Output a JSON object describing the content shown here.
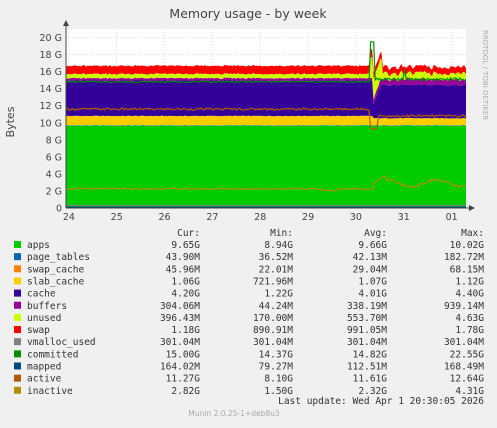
{
  "chart_data": {
    "type": "area",
    "title": "Memory usage - by week",
    "ylabel": "Bytes",
    "xlabel": "",
    "ylim": [
      0,
      21
    ],
    "y_unit": "G",
    "y_ticks": [
      {
        "value": 0,
        "label": "0"
      },
      {
        "value": 2,
        "label": "2 G"
      },
      {
        "value": 4,
        "label": "4 G"
      },
      {
        "value": 6,
        "label": "6 G"
      },
      {
        "value": 8,
        "label": "8 G"
      },
      {
        "value": 10,
        "label": "10 G"
      },
      {
        "value": 12,
        "label": "12 G"
      },
      {
        "value": 14,
        "label": "14 G"
      },
      {
        "value": 16,
        "label": "16 G"
      },
      {
        "value": 18,
        "label": "18 G"
      },
      {
        "value": 20,
        "label": "20 G"
      }
    ],
    "x_ticks": [
      "24",
      "25",
      "26",
      "27",
      "28",
      "29",
      "30",
      "31",
      "01"
    ],
    "x_range": [
      23.94,
      32.3
    ],
    "grid": true,
    "watermark": "RRDTOOL / TOBI OETIKER",
    "columns": [
      "Cur:",
      "Min:",
      "Avg:",
      "Max:"
    ],
    "series": [
      {
        "name": "apps",
        "color": "#00cc00",
        "cur": "9.65G",
        "min": "8.94G",
        "avg": "9.66G",
        "max": "10.02G"
      },
      {
        "name": "page_tables",
        "color": "#0066b3",
        "cur": "43.90M",
        "min": "36.52M",
        "avg": "42.13M",
        "max": "182.72M"
      },
      {
        "name": "swap_cache",
        "color": "#ff8000",
        "cur": "45.96M",
        "min": "22.01M",
        "avg": "29.04M",
        "max": "68.15M"
      },
      {
        "name": "slab_cache",
        "color": "#ffcc00",
        "cur": "1.06G",
        "min": "721.96M",
        "avg": "1.07G",
        "max": "1.12G"
      },
      {
        "name": "cache",
        "color": "#330099",
        "cur": "4.20G",
        "min": "1.22G",
        "avg": "4.01G",
        "max": "4.40G"
      },
      {
        "name": "buffers",
        "color": "#990099",
        "cur": "304.06M",
        "min": "44.24M",
        "avg": "338.19M",
        "max": "939.14M"
      },
      {
        "name": "unused",
        "color": "#ccff00",
        "cur": "396.43M",
        "min": "170.00M",
        "avg": "553.70M",
        "max": "4.63G"
      },
      {
        "name": "swap",
        "color": "#ff0000",
        "cur": "1.18G",
        "min": "890.91M",
        "avg": "991.05M",
        "max": "1.78G"
      },
      {
        "name": "vmalloc_used",
        "color": "#808080",
        "cur": "301.04M",
        "min": "301.04M",
        "avg": "301.04M",
        "max": "301.04M"
      },
      {
        "name": "committed",
        "color": "#008f00",
        "cur": "15.00G",
        "min": "14.37G",
        "avg": "14.82G",
        "max": "22.55G"
      },
      {
        "name": "mapped",
        "color": "#00487d",
        "cur": "164.02M",
        "min": "79.27M",
        "avg": "112.51M",
        "max": "168.49M"
      },
      {
        "name": "active",
        "color": "#b35a00",
        "cur": "11.27G",
        "min": "8.10G",
        "avg": "11.61G",
        "max": "12.64G"
      },
      {
        "name": "inactive",
        "color": "#b38f00",
        "cur": "2.82G",
        "min": "1.50G",
        "avg": "2.32G",
        "max": "4.31G"
      }
    ],
    "last_update": "Last update:  Wed Apr  1 20:30:05 2026",
    "footer": "Munin 2.0.25-1+deb8u3"
  }
}
